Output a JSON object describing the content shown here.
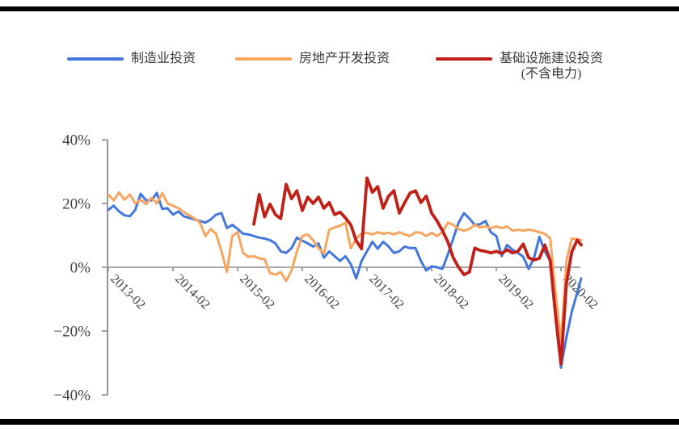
{
  "page": {
    "background": "#ffffff",
    "rule_color": "#000000"
  },
  "chart_data": {
    "type": "line",
    "title": "",
    "unit": "%",
    "legend_position": "top",
    "grid": "zero-line-only",
    "axis_color": "#8c8c8c",
    "label_color": "#3f3f3f",
    "y_axis": {
      "min": -40,
      "max": 40,
      "ticks": [
        40,
        20,
        0,
        -20,
        -40
      ],
      "tick_labels": [
        "40%",
        "20%",
        "0%",
        "−20%",
        "−40%"
      ]
    },
    "x_axis": {
      "start_month": "2013-02",
      "end_month": "2020-06",
      "months_total": 89,
      "tick_labels": [
        "2013-02",
        "2014-02",
        "2015-02",
        "2016-02",
        "2017-02",
        "2018-02",
        "2019-02",
        "2020-02"
      ],
      "tick_month_indices": [
        0,
        12,
        24,
        36,
        48,
        60,
        72,
        84
      ],
      "label_rotation_deg": 45
    },
    "series": [
      {
        "name": "制造业投资",
        "color": "#4477DD",
        "values": [
          18,
          19.3,
          17.5,
          16.3,
          16,
          18,
          23,
          21,
          21,
          23.3,
          18.3,
          18.5,
          16.5,
          17.5,
          16,
          15.5,
          15,
          14.5,
          14,
          15,
          16.5,
          17,
          12.3,
          13.3,
          12,
          10.5,
          10.3,
          9.8,
          9.3,
          9,
          8.5,
          7.5,
          5,
          4.5,
          6,
          9.3,
          8.3,
          7.5,
          6.5,
          7.5,
          3,
          5,
          3.5,
          2,
          3.5,
          1,
          -3.5,
          2,
          5,
          8,
          5.8,
          8,
          6.5,
          4.5,
          5,
          6.5,
          6,
          6,
          2,
          -1,
          0.3,
          0,
          -0.5,
          4,
          9,
          14,
          17,
          15.3,
          13.3,
          13.5,
          14.5,
          11,
          9.8,
          3.5,
          7,
          5.5,
          4.5,
          3.3,
          -0.5,
          3,
          9.5,
          5,
          2,
          -16,
          -31.5,
          -22,
          -14,
          -8,
          -3.5
        ]
      },
      {
        "name": "房地产开发投资",
        "color": "#F8A55F",
        "values": [
          22.8,
          21,
          23.5,
          21.2,
          22.8,
          20,
          21.2,
          19.8,
          21.8,
          20,
          23.3,
          20,
          19.3,
          18.5,
          17.3,
          16.3,
          15.3,
          14,
          9.8,
          12,
          10.5,
          5,
          -1.5,
          9.8,
          11,
          4.5,
          3.3,
          3.5,
          2.8,
          2.5,
          -1.8,
          -2.3,
          -1.5,
          -4.3,
          -1,
          5,
          9.8,
          10.3,
          8.5,
          6,
          4.3,
          11.8,
          12.5,
          13,
          14,
          6,
          9,
          10.5,
          10.8,
          10.3,
          11,
          10.5,
          10.8,
          10.3,
          11,
          10.3,
          9.8,
          11,
          10.8,
          9.8,
          10.8,
          9.8,
          11,
          14,
          13.3,
          12,
          11.5,
          12,
          13.3,
          12.5,
          12.8,
          12.3,
          12.8,
          12.3,
          12.8,
          11.5,
          11.8,
          11.5,
          11.8,
          11.5,
          11,
          10.5,
          9,
          -8,
          -24,
          2,
          9,
          8.8,
          8.5
        ]
      },
      {
        "name": "基础设施建设投资",
        "name_line2": "(不含电力)",
        "color": "#C02018",
        "values": [
          null,
          null,
          null,
          null,
          null,
          null,
          null,
          null,
          null,
          null,
          null,
          null,
          null,
          null,
          null,
          null,
          null,
          null,
          null,
          null,
          null,
          null,
          null,
          null,
          null,
          null,
          null,
          13.5,
          22.8,
          15.8,
          19.8,
          16.5,
          15.3,
          26,
          21.5,
          24,
          17.8,
          22,
          20,
          22,
          18.5,
          20.3,
          16.5,
          17.3,
          15.5,
          13.3,
          8.3,
          5.8,
          28,
          23.5,
          25.3,
          18.5,
          22.3,
          24,
          17,
          20.3,
          23.3,
          24,
          20.3,
          22.3,
          17,
          14.5,
          11.5,
          8,
          3,
          0,
          -2.3,
          -1.5,
          6,
          5.3,
          5,
          4.5,
          5,
          4.3,
          5.5,
          4.5,
          5,
          7.3,
          3,
          2.3,
          2.8,
          7,
          2,
          -15,
          -30.3,
          -5,
          4.8,
          8.5,
          7
        ]
      }
    ]
  }
}
